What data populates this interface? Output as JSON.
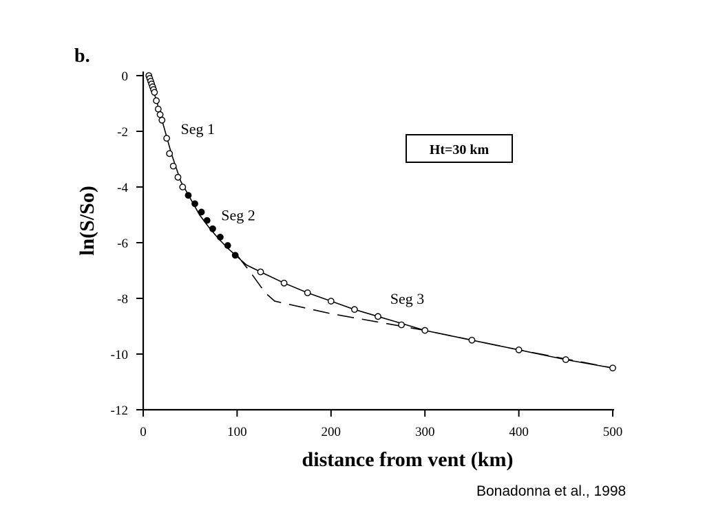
{
  "chart_data": {
    "type": "scatter",
    "panel_label": "b.",
    "xlabel": "distance from vent (km)",
    "ylabel": "ln(S/So)",
    "xlim": [
      0,
      500
    ],
    "ylim": [
      -12,
      0
    ],
    "xticks": [
      0,
      100,
      200,
      300,
      400,
      500
    ],
    "yticks": [
      0,
      -2,
      -4,
      -6,
      -8,
      -10,
      -12
    ],
    "grid": false,
    "annotation_box": "Ht=30 km",
    "segment_labels": [
      {
        "text": "Seg 1",
        "x": 40,
        "y": -2.1
      },
      {
        "text": "Seg 2",
        "x": 83,
        "y": -5.2
      },
      {
        "text": "Seg 3",
        "x": 263,
        "y": -8.2
      }
    ],
    "series": [
      {
        "marker": "open-circle",
        "x": [
          6,
          7,
          8,
          9,
          10,
          11,
          12,
          14,
          16,
          18,
          20,
          25,
          28,
          32,
          37,
          42,
          125,
          150,
          175,
          200,
          225,
          250,
          275,
          300,
          350,
          400,
          450,
          500
        ],
        "y": [
          0,
          -0.1,
          -0.2,
          -0.3,
          -0.4,
          -0.5,
          -0.6,
          -0.9,
          -1.2,
          -1.4,
          -1.6,
          -2.25,
          -2.8,
          -3.25,
          -3.65,
          -4.0,
          -7.05,
          -7.45,
          -7.8,
          -8.1,
          -8.4,
          -8.65,
          -8.95,
          -9.15,
          -9.5,
          -9.85,
          -10.2,
          -10.5
        ]
      },
      {
        "marker": "filled-circle",
        "x": [
          48,
          55,
          62,
          68,
          74,
          82,
          90,
          98
        ],
        "y": [
          -4.3,
          -4.6,
          -4.9,
          -5.2,
          -5.5,
          -5.8,
          -6.1,
          -6.45
        ]
      }
    ],
    "fit_line": {
      "style": "solid",
      "x": [
        6,
        10,
        15,
        20,
        25,
        30,
        40,
        50,
        60,
        70,
        80,
        90,
        100,
        110,
        125,
        150,
        175,
        200,
        225,
        250,
        275,
        300,
        350,
        400,
        450,
        500
      ],
      "y": [
        0,
        -0.45,
        -1.0,
        -1.6,
        -2.2,
        -2.8,
        -3.8,
        -4.4,
        -5.0,
        -5.45,
        -5.85,
        -6.2,
        -6.5,
        -6.8,
        -7.05,
        -7.45,
        -7.8,
        -8.1,
        -8.4,
        -8.65,
        -8.9,
        -9.15,
        -9.5,
        -9.85,
        -10.2,
        -10.5
      ]
    },
    "segment_lines": {
      "style": "dashed",
      "x": [
        100,
        115,
        130,
        140,
        160,
        200,
        250,
        300,
        400,
        500
      ],
      "y": [
        -6.45,
        -7.1,
        -7.8,
        -8.1,
        -8.25,
        -8.55,
        -8.85,
        -9.15,
        -9.85,
        -10.5
      ]
    }
  },
  "citation": "Bonadonna et al., 1998"
}
